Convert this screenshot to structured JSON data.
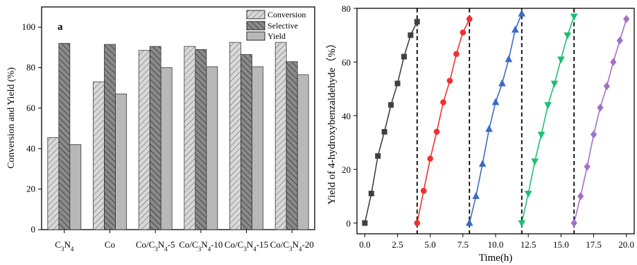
{
  "chart_data": [
    {
      "type": "bar",
      "panel_label": "a",
      "title": "",
      "xlabel": "",
      "ylabel": "Conversion and Yield (%)",
      "ylim": [
        0,
        110
      ],
      "yticks": [
        "0",
        "20",
        "40",
        "60",
        "80",
        "100"
      ],
      "grid": false,
      "legend_position": "top-right",
      "categories": [
        "C3N4",
        "Co",
        "Co/C3N4-5",
        "Co/C3N4-10",
        "Co/C3N4-15",
        "Co/C3N4-20"
      ],
      "series": [
        {
          "name": "Conversion",
          "values": [
            45.5,
            73,
            88.5,
            90.5,
            92.5,
            92.5
          ]
        },
        {
          "name": "Selective",
          "values": [
            92,
            91.5,
            90.5,
            89,
            86.5,
            83
          ]
        },
        {
          "name": "Yield",
          "values": [
            42,
            67,
            80,
            80.5,
            80.5,
            76.5
          ]
        }
      ]
    },
    {
      "type": "line",
      "title": "",
      "xlabel": "Time(h)",
      "ylabel": "Yield of 4-hydroxybenzaldehyde（%）",
      "xlim": [
        -0.6,
        20.6
      ],
      "ylim": [
        -4,
        80
      ],
      "xticks": [
        "0.0",
        "2.5",
        "5.0",
        "7.5",
        "10.0",
        "12.5",
        "15.0",
        "17.5",
        "20.0"
      ],
      "yticks": [
        "0",
        "20",
        "40",
        "60",
        "80"
      ],
      "grid": false,
      "vlines": [
        4,
        8,
        12,
        16
      ],
      "series": [
        {
          "color": "#404040",
          "marker": "square",
          "x": [
            0,
            0.5,
            1,
            1.5,
            2,
            2.5,
            3,
            3.5,
            4
          ],
          "y": [
            0,
            11,
            25,
            34,
            44,
            52,
            62,
            70,
            75
          ]
        },
        {
          "color": "#f03030",
          "marker": "circle",
          "x": [
            4,
            4.5,
            5,
            5.5,
            6,
            6.5,
            7,
            7.5,
            8
          ],
          "y": [
            0,
            12,
            24,
            34,
            45,
            53,
            63,
            71,
            76
          ]
        },
        {
          "color": "#3a6bc8",
          "marker": "triangle-up",
          "x": [
            8,
            8.5,
            9,
            9.5,
            10,
            10.5,
            11,
            11.5,
            12
          ],
          "y": [
            0,
            10,
            22,
            35,
            45,
            52,
            61,
            72,
            78
          ]
        },
        {
          "color": "#1fbf73",
          "marker": "triangle-down",
          "x": [
            12,
            12.5,
            13,
            13.5,
            14,
            14.5,
            15,
            15.5,
            16
          ],
          "y": [
            0,
            11,
            23,
            33,
            44,
            52,
            61,
            70,
            77
          ]
        },
        {
          "color": "#a070c8",
          "marker": "diamond",
          "x": [
            16,
            16.5,
            17,
            17.5,
            18,
            18.5,
            19,
            19.5,
            20
          ],
          "y": [
            0,
            10,
            21,
            33,
            43,
            51,
            60,
            68,
            76
          ]
        }
      ]
    }
  ]
}
